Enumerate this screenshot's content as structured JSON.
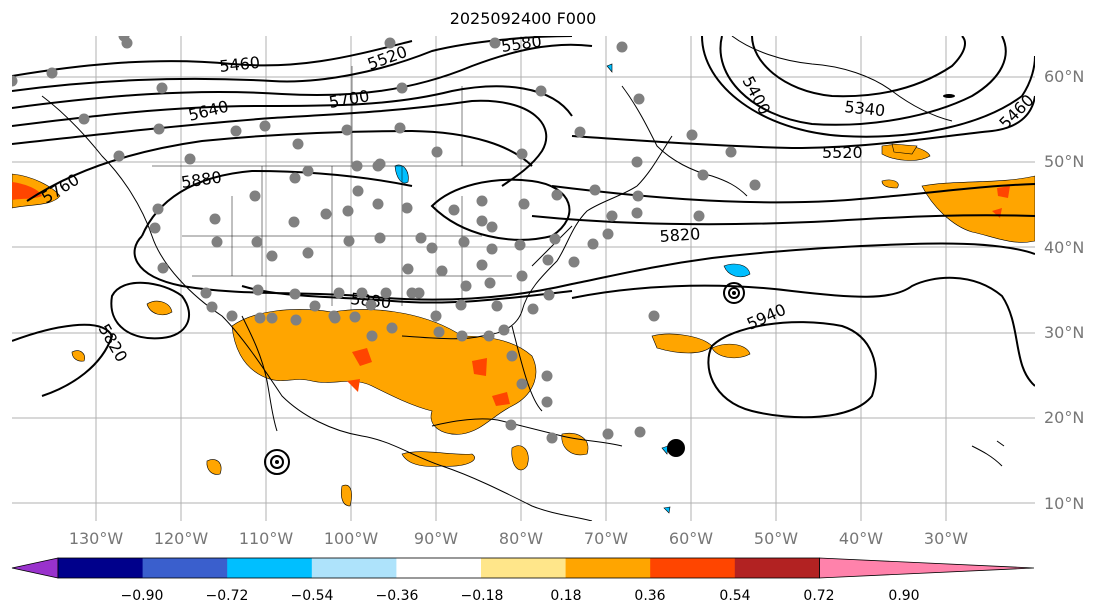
{
  "title": "2025092400 F000",
  "lat_labels": [
    "60°N",
    "50°N",
    "40°N",
    "30°N",
    "20°N",
    "10°N"
  ],
  "lon_labels": [
    "130°W",
    "120°W",
    "110°W",
    "100°W",
    "90°W",
    "80°W",
    "70°W",
    "60°W",
    "50°W",
    "40°W",
    "30°W"
  ],
  "contour_labels": [
    "5460",
    "5520",
    "5580",
    "5640",
    "5700",
    "5760",
    "5880",
    "5820",
    "5880",
    "5940",
    "5820",
    "5400",
    "5340",
    "5520",
    "5460"
  ],
  "colorbar": {
    "ticks": [
      "−0.90",
      "−0.72",
      "−0.54",
      "−0.36",
      "−0.18",
      "0.18",
      "0.36",
      "0.54",
      "0.72",
      "0.90"
    ],
    "colors": [
      "#9932cc",
      "#00008b",
      "#3a5fcd",
      "#00bfff",
      "#aee3fb",
      "#ffffff",
      "#ffe68a",
      "#ffa500",
      "#ff4500",
      "#b22222",
      "#ff82ab"
    ]
  },
  "colors": {
    "grid": "#b0b0b0",
    "station": "#808080",
    "contour": "#000000"
  }
}
